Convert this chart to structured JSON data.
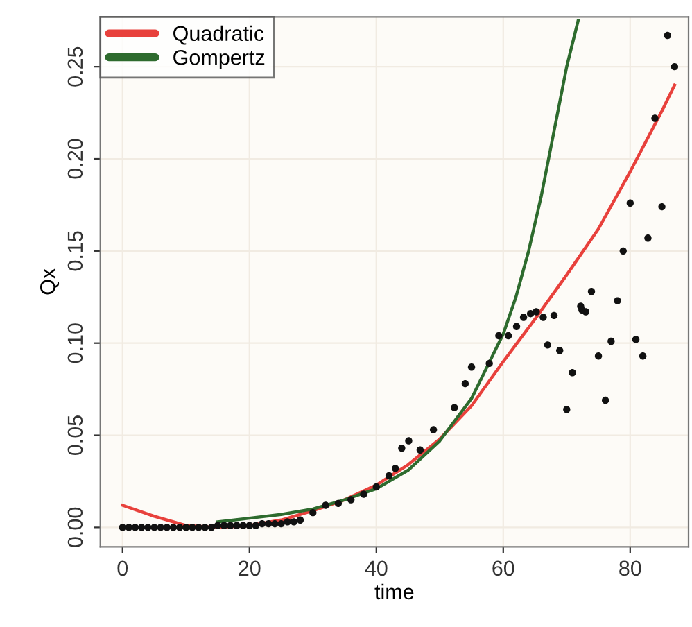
{
  "chart_data": {
    "type": "scatter",
    "xlabel": "time",
    "ylabel": "Qx",
    "xlim": [
      -3.5,
      89.2
    ],
    "ylim": [
      -0.0105,
      0.277
    ],
    "xticks": [
      0,
      20,
      40,
      60,
      80
    ],
    "yticks": [
      {
        "value": 0,
        "label": "0.00"
      },
      {
        "value": 0.05,
        "label": "0.05"
      },
      {
        "value": 0.1,
        "label": "0.10"
      },
      {
        "value": 0.15,
        "label": "0.15"
      },
      {
        "value": 0.2,
        "label": "0.20"
      },
      {
        "value": 0.25,
        "label": "0.25"
      }
    ],
    "grid": true,
    "legend": "top left",
    "marker": "circle",
    "series": [
      {
        "color": "#111111",
        "x": [
          0,
          1,
          2,
          3,
          4,
          5,
          6,
          7,
          8,
          9,
          10,
          11,
          12,
          13,
          14,
          15,
          16,
          17,
          18,
          19,
          20,
          21,
          22,
          23,
          24,
          25,
          26,
          27,
          28,
          30,
          32,
          34,
          36,
          38,
          40,
          42,
          43,
          44,
          45.1,
          46.9,
          49,
          52.3,
          54,
          55,
          57.8,
          59.3,
          60.8,
          62.1,
          63.2,
          64.3,
          65.2,
          66.3,
          67,
          68,
          68.9,
          70,
          70.9,
          72.2,
          72.4,
          73,
          73.9,
          75,
          76.1,
          77,
          78,
          78.9,
          80,
          80.9,
          82,
          82.8,
          83.9,
          85,
          85.9,
          87
        ],
        "values": [
          0,
          0,
          0,
          0,
          0,
          0,
          0,
          0,
          0,
          0,
          0,
          0,
          0,
          0,
          0,
          0.001,
          0.001,
          0.001,
          0.001,
          0.001,
          0.001,
          0.001,
          0.002,
          0.002,
          0.002,
          0.002,
          0.003,
          0.003,
          0.004,
          0.008,
          0.012,
          0.013,
          0.015,
          0.018,
          0.022,
          0.028,
          0.032,
          0.043,
          0.047,
          0.042,
          0.053,
          0.065,
          0.078,
          0.087,
          0.089,
          0.104,
          0.104,
          0.109,
          0.114,
          0.116,
          0.117,
          0.114,
          0.099,
          0.115,
          0.096,
          0.064,
          0.084,
          0.12,
          0.118,
          0.117,
          0.128,
          0.093,
          0.069,
          0.101,
          0.123,
          0.15,
          0.176,
          0.102,
          0.093,
          0.157,
          0.222,
          0.174,
          0.267,
          0.25
        ]
      },
      {
        "type": "line",
        "name": "Quadratic",
        "color": "#e8413c",
        "marker": "none",
        "x": [
          0,
          5,
          10,
          15,
          20,
          25,
          30,
          35,
          40,
          45,
          50,
          55,
          60,
          65,
          70,
          75,
          80,
          85,
          87
        ],
        "values": [
          0.012,
          0.006,
          0.001,
          0,
          0.001,
          0.004,
          0.009,
          0.015,
          0.023,
          0.034,
          0.048,
          0.066,
          0.09,
          0.113,
          0.137,
          0.162,
          0.193,
          0.226,
          0.24
        ]
      },
      {
        "type": "line",
        "name": "Gompertz",
        "color": "#2e6b2e",
        "marker": "none",
        "x": [
          15,
          20,
          25,
          30,
          35,
          40,
          45,
          50,
          55,
          60,
          62,
          64,
          66,
          68,
          70,
          71.8
        ],
        "values": [
          0.003,
          0.005,
          0.007,
          0.01,
          0.015,
          0.021,
          0.031,
          0.047,
          0.07,
          0.105,
          0.125,
          0.15,
          0.18,
          0.215,
          0.25,
          0.275
        ]
      }
    ]
  }
}
